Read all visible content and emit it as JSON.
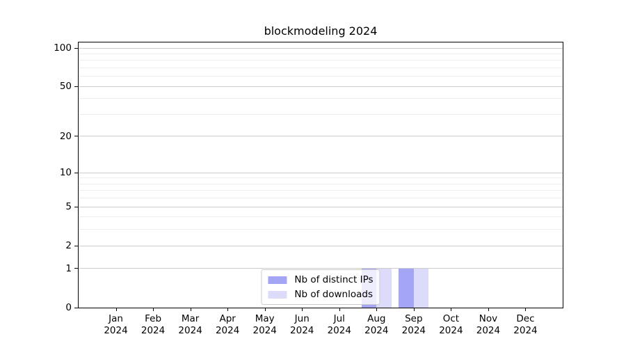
{
  "chart_data": {
    "type": "bar",
    "title": "blockmodeling 2024",
    "x_tick_months": [
      "Jan",
      "Feb",
      "Mar",
      "Apr",
      "May",
      "Jun",
      "Jul",
      "Aug",
      "Sep",
      "Oct",
      "Nov",
      "Dec"
    ],
    "x_tick_year": "2024",
    "series": [
      {
        "name": "Nb of distinct IPs",
        "color": "#a5a5f6",
        "values": [
          0,
          0,
          0,
          0,
          0,
          0,
          0,
          1,
          1,
          0,
          0,
          0
        ]
      },
      {
        "name": "Nb of downloads",
        "color": "#dcdcfa",
        "values": [
          0,
          0,
          0,
          0,
          0,
          0,
          0,
          1,
          1,
          0,
          0,
          0
        ]
      }
    ],
    "y_axis": {
      "scale": "log1p",
      "major_ticks": [
        0,
        1,
        2,
        5,
        10,
        20,
        50,
        100
      ],
      "minor_ticks": [
        3,
        4,
        6,
        7,
        8,
        9,
        30,
        40,
        60,
        70,
        80,
        90
      ],
      "max": 110.6
    },
    "x_axis": {
      "slots": 13
    },
    "bar_width_fraction": 0.4,
    "grid": true,
    "legend_position": "lower center"
  }
}
